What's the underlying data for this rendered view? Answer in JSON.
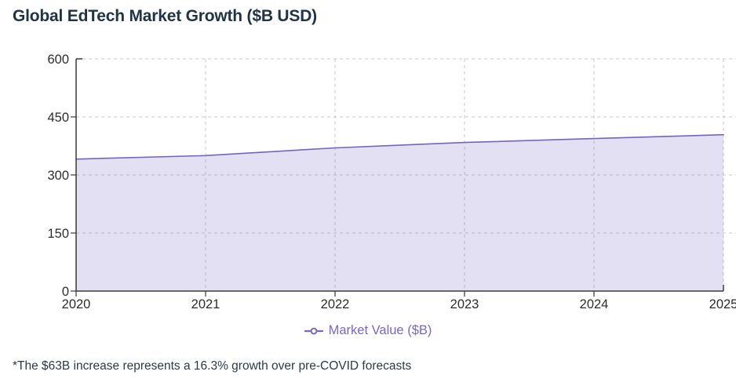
{
  "title": "Global EdTech Market Growth ($B USD)",
  "legend": {
    "label": "Market Value ($B)",
    "marker": "line-with-open-circle"
  },
  "footnote": "*The $63B increase represents a 16.3% growth over pre-COVID forecasts",
  "colors": {
    "line": "#7166c2",
    "fill": "rgba(113,102,194,0.20)",
    "legend_text": "#7668cc",
    "title_text": "#203447",
    "footnote_text": "#2c3a49",
    "grid": "#c9c9c9",
    "axis": "#3a3a3a"
  },
  "chart_data": {
    "type": "area",
    "categories": [
      "2020",
      "2021",
      "2022",
      "2023",
      "2024",
      "2025"
    ],
    "series": [
      {
        "name": "Market Value ($B)",
        "values": [
          341,
          350,
          370,
          384,
          394,
          404
        ]
      }
    ],
    "title": "Global EdTech Market Growth ($B USD)",
    "xlabel": "",
    "ylabel": "",
    "ylim": [
      0,
      600
    ],
    "y_ticks": [
      0,
      150,
      300,
      450,
      600
    ],
    "grid": "dashed, horizontal and vertical",
    "legend_position": "bottom-center",
    "annotation": "*The $63B increase represents a 16.3% growth over pre-COVID forecasts",
    "derived_increase": "$63B (341 to 404)"
  }
}
